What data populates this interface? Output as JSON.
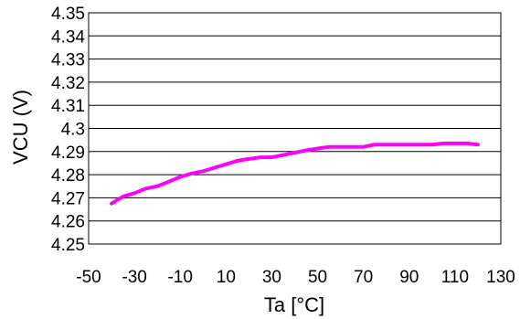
{
  "chart_data": {
    "type": "line",
    "title": "",
    "xlabel": "Ta [°C]",
    "ylabel": "VCU (V)",
    "xlim": [
      -50,
      130
    ],
    "ylim": [
      4.25,
      4.35
    ],
    "x_ticks": [
      "-50",
      "-30",
      "-10",
      "10",
      "30",
      "50",
      "70",
      "90",
      "110",
      "130"
    ],
    "y_ticks": [
      "4.35",
      "4.34",
      "4.33",
      "4.32",
      "4.31",
      "4.3",
      "4.29",
      "4.28",
      "4.27",
      "4.26",
      "4.25"
    ],
    "grid": "horizontal",
    "legend": "none",
    "series": [
      {
        "color": "#ff00ff",
        "x": [
          -40,
          -35,
          -30,
          -25,
          -20,
          -15,
          -10,
          -5,
          0,
          5,
          10,
          15,
          20,
          25,
          30,
          35,
          40,
          45,
          50,
          55,
          60,
          65,
          70,
          75,
          80,
          85,
          90,
          95,
          100,
          105,
          110,
          115,
          120
        ],
        "y": [
          4.2675,
          4.2705,
          4.272,
          4.274,
          4.275,
          4.277,
          4.279,
          4.2805,
          4.2815,
          4.283,
          4.2845,
          4.286,
          4.2868,
          4.2875,
          4.2875,
          4.2885,
          4.2895,
          4.2905,
          4.2913,
          4.292,
          4.292,
          4.292,
          4.292,
          4.293,
          4.293,
          4.293,
          4.293,
          4.293,
          4.293,
          4.2935,
          4.2935,
          4.2935,
          4.293
        ]
      }
    ]
  }
}
